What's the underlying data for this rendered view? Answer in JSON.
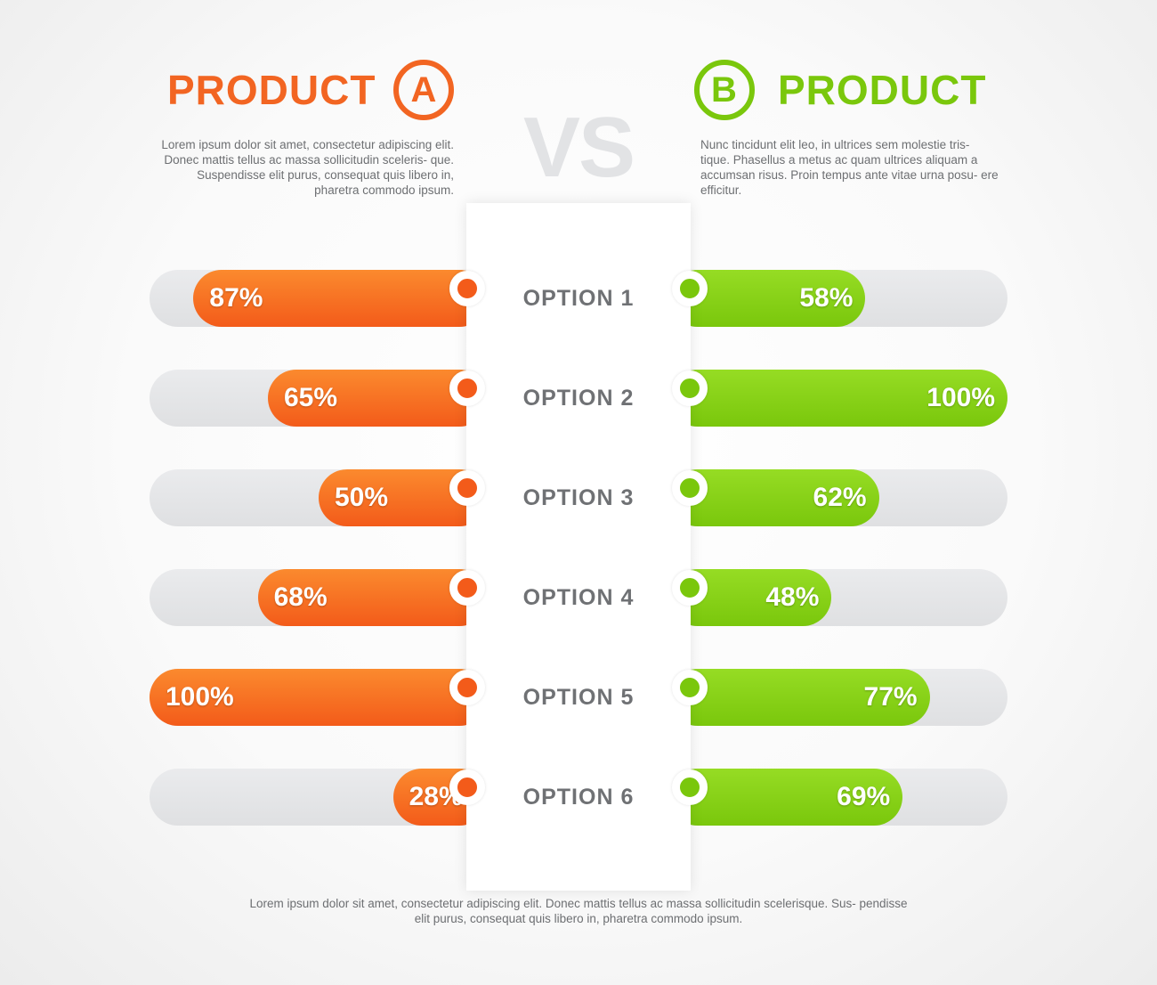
{
  "product_a": {
    "title": "PRODUCT",
    "badge": "A",
    "description": "Lorem ipsum dolor sit amet, consectetur adipiscing elit. Donec mattis tellus ac massa sollicitudin sceleris- que. Suspendisse elit purus, consequat quis libero in, pharetra commodo ipsum.",
    "color": "#f26522"
  },
  "product_b": {
    "title": "PRODUCT",
    "badge": "B",
    "description": "Nunc tincidunt elit leo, in ultrices sem molestie tris- tique. Phasellus a metus ac quam ultrices aliquam a accumsan risus. Proin tempus ante vitae urna posu- ere efficitur.",
    "color": "#7ac70c"
  },
  "vs_label": "VS",
  "footer": "Lorem ipsum dolor sit amet, consectetur adipiscing elit. Donec mattis tellus ac massa sollicitudin scelerisque. Sus- pendisse elit purus, consequat quis libero in, pharetra commodo ipsum.",
  "chart_data": {
    "type": "bar",
    "categories": [
      "OPTION 1",
      "OPTION 2",
      "OPTION 3",
      "OPTION 4",
      "OPTION 5",
      "OPTION 6"
    ],
    "series": [
      {
        "values": [
          87,
          65,
          50,
          68,
          100,
          28
        ],
        "color": "#f35b1a"
      },
      {
        "values": [
          58,
          100,
          62,
          48,
          77,
          69
        ],
        "color": "#7ac70c"
      }
    ],
    "value_suffix": "%",
    "ylim": [
      0,
      100
    ]
  }
}
